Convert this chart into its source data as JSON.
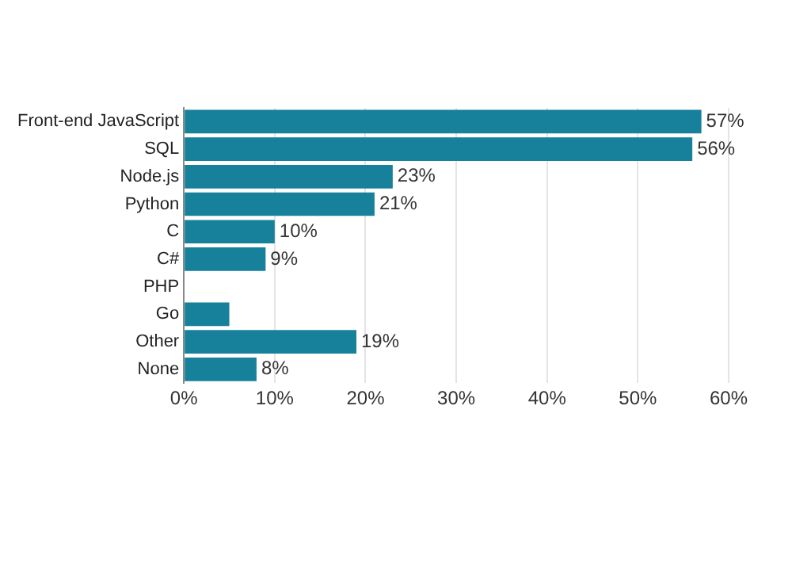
{
  "chart_data": {
    "type": "bar",
    "orientation": "horizontal",
    "categories": [
      "Front-end JavaScript",
      "SQL",
      "Node.js",
      "Python",
      "C",
      "C#",
      "PHP",
      "Go",
      "Other",
      "None"
    ],
    "values": [
      57,
      56,
      23,
      21,
      10,
      9,
      null,
      5,
      19,
      8
    ],
    "value_labels": [
      "57%",
      "56%",
      "23%",
      "21%",
      "10%",
      "9%",
      null,
      null,
      "19%",
      "8%"
    ],
    "color": "#17819b",
    "xlim": [
      0,
      60
    ],
    "xticks": [
      {
        "value": 0,
        "label": "0%"
      },
      {
        "value": 10,
        "label": "10%"
      },
      {
        "value": 20,
        "label": "20%"
      },
      {
        "value": 30,
        "label": "30%"
      },
      {
        "value": 40,
        "label": "40%"
      },
      {
        "value": 50,
        "label": "50%"
      },
      {
        "value": 60,
        "label": "60%"
      }
    ],
    "grid": "x",
    "legend": false
  }
}
